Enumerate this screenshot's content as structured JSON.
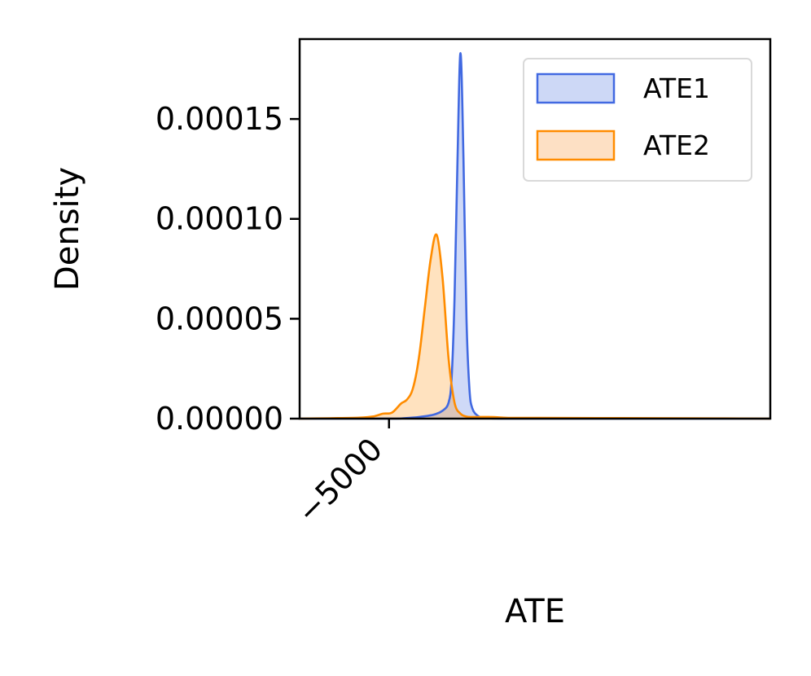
{
  "chart_data": {
    "type": "area",
    "title": "",
    "xlabel": "ATE",
    "ylabel": "Density",
    "xlim": [
      -8000,
      7800
    ],
    "ylim": [
      0,
      0.00019
    ],
    "x_ticks": [
      -5000
    ],
    "x_tick_labels": [
      "−5000"
    ],
    "y_ticks": [
      0,
      5e-05,
      0.0001,
      0.00015
    ],
    "y_tick_labels": [
      "0.00000",
      "0.00005",
      "0.00010",
      "0.00015"
    ],
    "grid": false,
    "legend_position": "top-right",
    "series": [
      {
        "name": "ATE1",
        "color": "#4169e1",
        "fill_color": "#cdd8f6",
        "x": [
          -8000,
          -5000,
          -4500,
          -4000,
          -3500,
          -3200,
          -3000,
          -2900,
          -2800,
          -2700,
          -2600,
          -2500,
          -2400,
          -2300,
          -2200,
          -2000,
          -1800,
          -1500,
          -1000,
          0,
          7800
        ],
        "y": [
          0,
          0,
          2e-07,
          8e-07,
          2e-06,
          4e-06,
          8e-06,
          2e-05,
          6e-05,
          0.00013,
          0.000183,
          0.00013,
          5e-05,
          1.5e-05,
          5e-06,
          1.2e-06,
          4e-07,
          1e-07,
          0,
          0,
          0
        ]
      },
      {
        "name": "ATE2",
        "color": "#ff8c00",
        "fill_color": "#fde0c4",
        "x": [
          -8000,
          -7000,
          -6000,
          -5500,
          -5200,
          -4900,
          -4600,
          -4400,
          -4200,
          -4000,
          -3800,
          -3600,
          -3400,
          -3200,
          -3000,
          -2800,
          -2600,
          -2400,
          -2200,
          -2000,
          -1500,
          -1000,
          0,
          2000,
          5000,
          7800
        ],
        "y": [
          0,
          2e-07,
          5e-07,
          1.2e-06,
          2.5e-06,
          3e-06,
          7.5e-06,
          9.5e-06,
          1.5e-05,
          3e-05,
          5.5e-05,
          8e-05,
          9.2e-05,
          7e-05,
          3e-05,
          8e-06,
          2.5e-06,
          1e-06,
          8e-07,
          8e-07,
          8e-07,
          4e-07,
          4e-07,
          3e-07,
          2e-07,
          0
        ]
      }
    ]
  }
}
